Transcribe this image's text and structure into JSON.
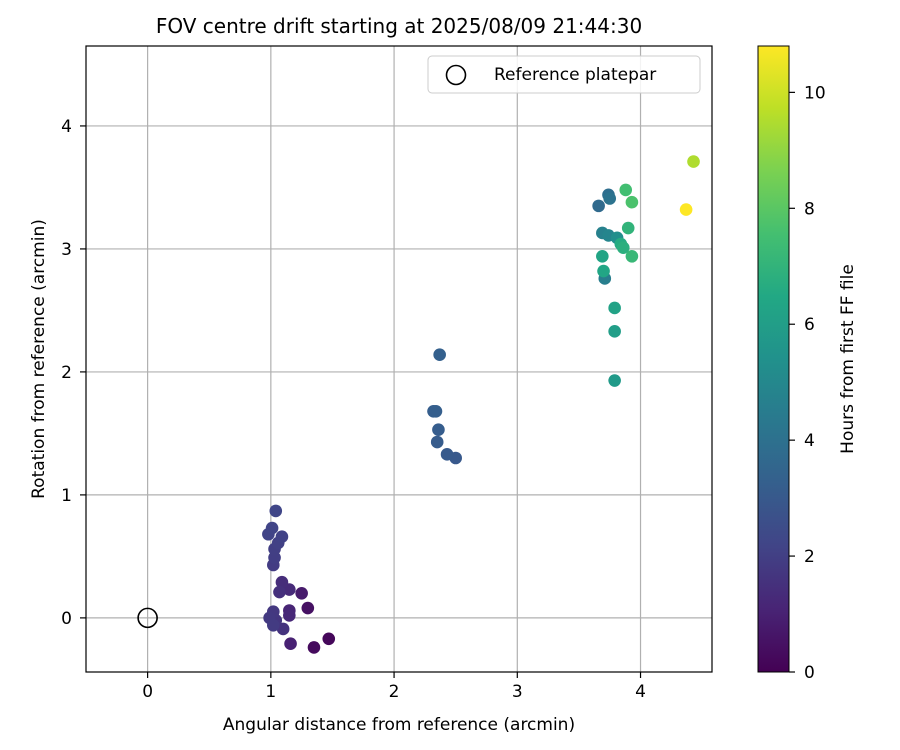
{
  "chart_data": {
    "type": "scatter",
    "title": "FOV centre drift starting at 2025/08/09 21:44:30",
    "xlabel": "Angular distance from reference (arcmin)",
    "ylabel": "Rotation from reference (arcmin)",
    "xlim": [
      -0.5,
      4.58
    ],
    "ylim": [
      -0.44,
      4.65
    ],
    "x_ticks": [
      0,
      1,
      2,
      3,
      4
    ],
    "y_ticks": [
      0,
      1,
      2,
      3,
      4
    ],
    "grid": true,
    "legend": {
      "position": "top-right",
      "entries": [
        "Reference platepar"
      ]
    },
    "reference_point": {
      "x": 0,
      "y": 0
    },
    "colorbar": {
      "label": "Hours from first FF file",
      "range": [
        0,
        10.8
      ],
      "ticks": [
        0,
        2,
        4,
        6,
        8,
        10
      ],
      "colormap": "viridis"
    },
    "points": [
      {
        "x": 1.47,
        "y": -0.17,
        "hours": 0.2
      },
      {
        "x": 1.35,
        "y": -0.24,
        "hours": 0.3
      },
      {
        "x": 1.3,
        "y": 0.08,
        "hours": 0.5
      },
      {
        "x": 1.25,
        "y": 0.2,
        "hours": 0.8
      },
      {
        "x": 1.16,
        "y": -0.21,
        "hours": 1.0
      },
      {
        "x": 1.15,
        "y": 0.06,
        "hours": 1.1
      },
      {
        "x": 1.15,
        "y": 0.02,
        "hours": 1.2
      },
      {
        "x": 1.15,
        "y": 0.23,
        "hours": 1.3
      },
      {
        "x": 1.09,
        "y": 0.29,
        "hours": 1.4
      },
      {
        "x": 1.07,
        "y": 0.21,
        "hours": 1.5
      },
      {
        "x": 1.1,
        "y": -0.09,
        "hours": 1.6
      },
      {
        "x": 1.04,
        "y": -0.02,
        "hours": 1.7
      },
      {
        "x": 1.02,
        "y": 0.05,
        "hours": 1.75
      },
      {
        "x": 0.99,
        "y": 0.0,
        "hours": 1.8
      },
      {
        "x": 1.02,
        "y": -0.06,
        "hours": 1.85
      },
      {
        "x": 1.02,
        "y": 0.43,
        "hours": 1.9
      },
      {
        "x": 1.03,
        "y": 0.49,
        "hours": 1.95
      },
      {
        "x": 1.03,
        "y": 0.56,
        "hours": 2.0
      },
      {
        "x": 1.06,
        "y": 0.61,
        "hours": 2.05
      },
      {
        "x": 1.09,
        "y": 0.66,
        "hours": 2.1
      },
      {
        "x": 0.98,
        "y": 0.68,
        "hours": 2.15
      },
      {
        "x": 1.01,
        "y": 0.73,
        "hours": 2.2
      },
      {
        "x": 1.04,
        "y": 0.87,
        "hours": 2.25
      },
      {
        "x": 2.5,
        "y": 1.3,
        "hours": 3.0
      },
      {
        "x": 2.43,
        "y": 1.33,
        "hours": 3.05
      },
      {
        "x": 2.35,
        "y": 1.43,
        "hours": 3.1
      },
      {
        "x": 2.36,
        "y": 1.53,
        "hours": 3.15
      },
      {
        "x": 2.32,
        "y": 1.68,
        "hours": 3.2
      },
      {
        "x": 2.34,
        "y": 1.68,
        "hours": 3.25
      },
      {
        "x": 2.37,
        "y": 2.14,
        "hours": 3.3
      },
      {
        "x": 3.66,
        "y": 3.35,
        "hours": 3.7
      },
      {
        "x": 3.74,
        "y": 3.44,
        "hours": 3.9
      },
      {
        "x": 3.75,
        "y": 3.41,
        "hours": 4.1
      },
      {
        "x": 3.71,
        "y": 2.76,
        "hours": 4.6
      },
      {
        "x": 3.69,
        "y": 3.13,
        "hours": 4.7
      },
      {
        "x": 3.74,
        "y": 3.11,
        "hours": 4.9
      },
      {
        "x": 3.81,
        "y": 3.09,
        "hours": 5.3
      },
      {
        "x": 3.79,
        "y": 1.93,
        "hours": 5.8
      },
      {
        "x": 3.79,
        "y": 2.33,
        "hours": 6.0
      },
      {
        "x": 3.79,
        "y": 2.52,
        "hours": 6.2
      },
      {
        "x": 3.69,
        "y": 2.94,
        "hours": 6.3
      },
      {
        "x": 3.7,
        "y": 2.82,
        "hours": 6.4
      },
      {
        "x": 3.84,
        "y": 3.04,
        "hours": 6.6
      },
      {
        "x": 3.86,
        "y": 3.01,
        "hours": 6.8
      },
      {
        "x": 3.9,
        "y": 3.17,
        "hours": 7.0
      },
      {
        "x": 3.93,
        "y": 2.94,
        "hours": 7.2
      },
      {
        "x": 3.88,
        "y": 3.48,
        "hours": 7.5
      },
      {
        "x": 3.93,
        "y": 3.38,
        "hours": 7.7
      },
      {
        "x": 4.43,
        "y": 3.71,
        "hours": 9.5
      },
      {
        "x": 4.37,
        "y": 3.32,
        "hours": 10.8
      }
    ]
  }
}
